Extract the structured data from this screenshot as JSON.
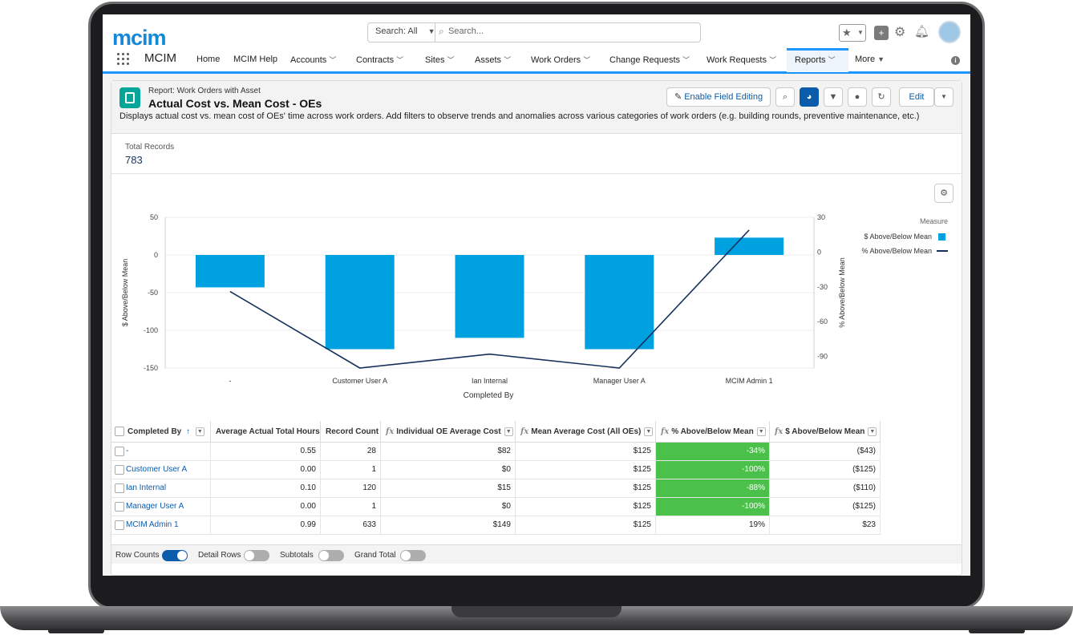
{
  "header": {
    "logo": "mcim",
    "search_scope": "Search: All",
    "search_placeholder": "Search...",
    "app_name": "MCIM"
  },
  "nav": [
    {
      "label": "Home",
      "chevron": false
    },
    {
      "label": "MCIM Help",
      "chevron": false
    },
    {
      "label": "Accounts",
      "chevron": true
    },
    {
      "label": "Contracts",
      "chevron": true
    },
    {
      "label": "Sites",
      "chevron": true
    },
    {
      "label": "Assets",
      "chevron": true
    },
    {
      "label": "Work Orders",
      "chevron": true
    },
    {
      "label": "Change Requests",
      "chevron": true
    },
    {
      "label": "Work Requests",
      "chevron": true
    },
    {
      "label": "Reports",
      "chevron": true
    },
    {
      "label": "More",
      "chevron": true
    }
  ],
  "report": {
    "type_label": "Report: Work Orders with Asset",
    "title": "Actual Cost vs. Mean Cost - OEs",
    "description": "Displays actual cost vs. mean cost of OEs' time across work orders. Add filters to observe trends and anomalies across various categories of work orders (e.g. building rounds, preventive maintenance, etc.)",
    "enable_editing_label": "Enable Field Editing",
    "edit_label": "Edit",
    "total_records_label": "Total Records",
    "total_records_value": "783"
  },
  "chart_data": {
    "type": "bar",
    "categories": [
      "-",
      "Customer User A",
      "Ian Internal",
      "Manager User A",
      "MCIM Admin 1"
    ],
    "series": [
      {
        "name": "$ Above/Below Mean",
        "type": "bar",
        "axis": "left",
        "color": "#00a1e0",
        "values": [
          -43,
          -125,
          -110,
          -125,
          23
        ]
      },
      {
        "name": "% Above/Below Mean",
        "type": "line",
        "axis": "right",
        "color": "#16325c",
        "values": [
          -34,
          -100,
          -88,
          -100,
          19
        ]
      }
    ],
    "xlabel": "Completed By",
    "ylabel": "$ Above/Below Mean",
    "y2label": "% Above/Below Mean",
    "ylim": [
      -150,
      50
    ],
    "y2lim": [
      -100,
      30
    ],
    "yticks": [
      "50",
      "0",
      "-50",
      "-100",
      "-150"
    ],
    "y2ticks": [
      "30",
      "0",
      "-30",
      "-60",
      "-90"
    ],
    "legend_title": "Measure",
    "legend_position": "right"
  },
  "table": {
    "columns": [
      "Completed By",
      "Average Actual Total Hours",
      "Record Count",
      "Individual OE Average Cost",
      "Mean Average Cost (All OEs)",
      "% Above/Below Mean",
      "$ Above/Below Mean"
    ],
    "rows": [
      [
        "-",
        "0.55",
        "28",
        "$82",
        "$125",
        "-34%",
        "($43)"
      ],
      [
        "Customer User A",
        "0.00",
        "1",
        "$0",
        "$125",
        "-100%",
        "($125)"
      ],
      [
        "Ian Internal",
        "0.10",
        "120",
        "$15",
        "$125",
        "-88%",
        "($110)"
      ],
      [
        "Manager User A",
        "0.00",
        "1",
        "$0",
        "$125",
        "-100%",
        "($125)"
      ],
      [
        "MCIM Admin 1",
        "0.99",
        "633",
        "$149",
        "$125",
        "19%",
        "$23"
      ]
    ],
    "highlighted_rows": [
      0,
      1,
      2,
      3
    ],
    "highlight_color": "#4bc04b"
  },
  "footer": {
    "toggles": [
      {
        "label": "Row Counts",
        "on": true
      },
      {
        "label": "Detail Rows",
        "on": false
      },
      {
        "label": "Subtotals",
        "on": false
      },
      {
        "label": "Grand Total",
        "on": false
      }
    ]
  }
}
